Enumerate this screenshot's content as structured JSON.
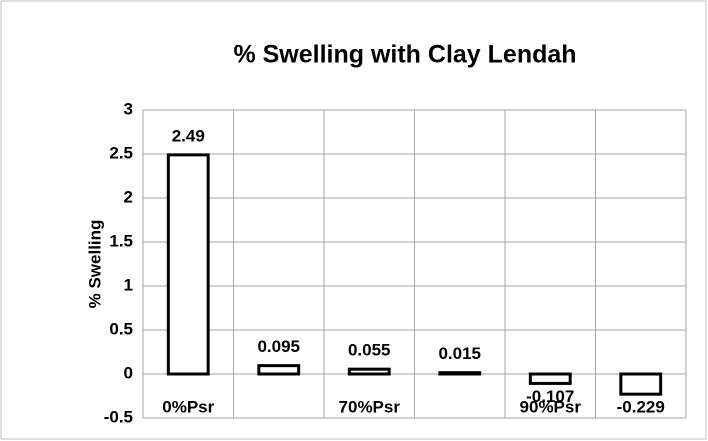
{
  "chart_data": {
    "type": "bar",
    "title": "% Swelling with Clay Lendah",
    "y_label": "% Swelling",
    "categories": [
      "0%Psr",
      null,
      "70%Psr",
      null,
      "90%Psr",
      null
    ],
    "values": [
      2.49,
      0.095,
      0.055,
      0.015,
      -0.107,
      -0.229
    ],
    "color": "#ffffff",
    "edge_color": "#000000",
    "ylim": [
      -0.5,
      3
    ],
    "yticks": [
      -0.5,
      0,
      0.5,
      1,
      1.5,
      2,
      2.5,
      3
    ],
    "grid": true
  }
}
